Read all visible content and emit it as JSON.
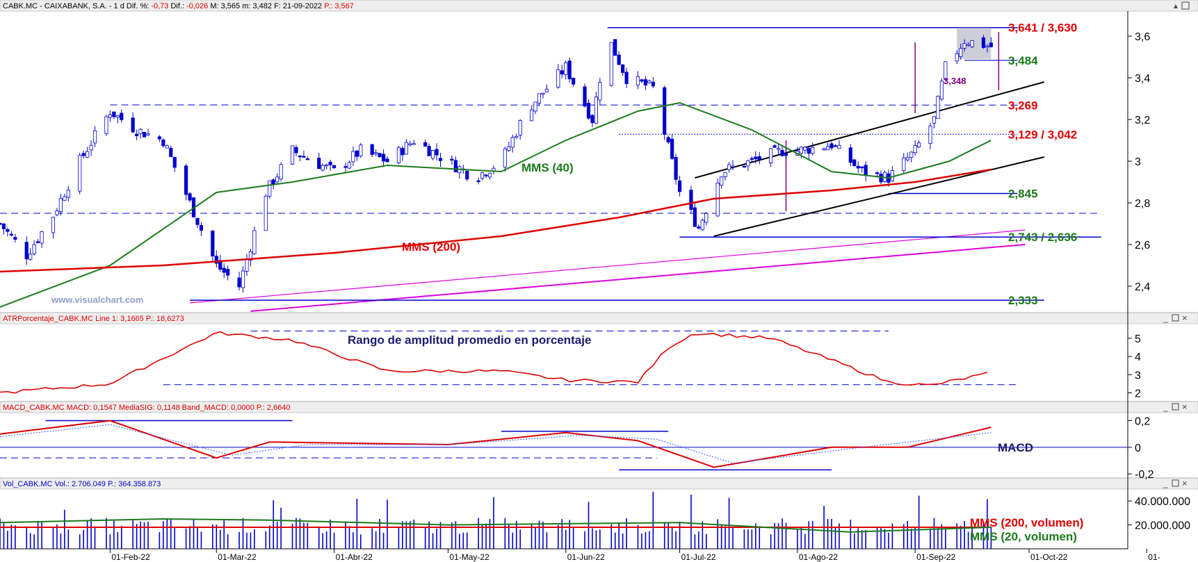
{
  "header": {
    "symbol": "CABK.MC - CAIXABANK, S.A. -",
    "period": "1 d",
    "dif_pct_label": "Dif. %:",
    "dif_pct": "-0,73",
    "dif_label": "Dif.:",
    "dif": "-0,026",
    "max": "M: 3,565",
    "min": "m: 3,482",
    "date": "F: 21-09-2022",
    "last": "P.: 3,567"
  },
  "watermark": "www.visualchart.com",
  "colors": {
    "price": "#0000cc",
    "mms40": "#1a7a1a",
    "mms200": "#e00000",
    "magenta": "#e000e0",
    "purple": "#800080",
    "green_label": "#1a7a1a",
    "red_label": "#e00000"
  },
  "panes": {
    "atr": {
      "title": "ATRPorcentaje_CABK.MC  Line 1: 3,1665  P.: 18,6273",
      "annotation": "Rango de amplitud promedio en porcentaje"
    },
    "macd": {
      "title": "MACD_CABK.MC  MACD: 0,1547  MediaSIG: 0,1148  Band_MACD: 0,0000  P.: 2,6640",
      "annotation": "MACD"
    },
    "volume": {
      "title": "Vol_CABK.MC  Vol.: 2.706.049  P.: 364.358.873",
      "mms200_label": "MMS (200, volumen)",
      "mms20_label": "MMS (20, volumen)"
    }
  },
  "annotations": {
    "mms40": "MMS (40)",
    "mms200": "MMS (200)",
    "target": "3,348"
  },
  "levels": [
    {
      "label": "3,641 / 3,630",
      "value": 3.641,
      "color": "#e00000"
    },
    {
      "label": "3,484",
      "value": 3.484,
      "color": "#1a7a1a"
    },
    {
      "label": "3,269",
      "value": 3.269,
      "color": "#e00000"
    },
    {
      "label": "3,129 / 3,042",
      "value": 3.129,
      "color": "#e00000"
    },
    {
      "label": "2,845",
      "value": 2.845,
      "color": "#1a7a1a"
    },
    {
      "label": "2,743 / 2,636",
      "value": 2.636,
      "color": "#1a7a1a"
    },
    {
      "label": "2,333",
      "value": 2.333,
      "color": "#1a7a1a"
    }
  ],
  "chart_data": [
    {
      "type": "candlestick",
      "ylim": [
        2.28,
        3.72
      ],
      "yticks": [
        "3,6",
        "3,4",
        "3,2",
        "3",
        "2,8",
        "2,6",
        "2,4"
      ],
      "xticks": [
        "01-Feb-22",
        "01-Mar-22",
        "01-Abr-22",
        "01-May-22",
        "01-Jun-22",
        "01-Jul-22",
        "01-Ago-22",
        "01-Sep-22",
        "01-Oct-22",
        "01-"
      ],
      "close_path": [
        [
          "2022-01-03",
          2.7
        ],
        [
          "2022-01-10",
          2.55
        ],
        [
          "2022-01-17",
          2.74
        ],
        [
          "2022-01-24",
          3.0
        ],
        [
          "2022-02-01",
          3.24
        ],
        [
          "2022-02-08",
          3.15
        ],
        [
          "2022-02-15",
          3.1
        ],
        [
          "2022-02-22",
          2.8
        ],
        [
          "2022-03-01",
          2.5
        ],
        [
          "2022-03-07",
          2.4
        ],
        [
          "2022-03-14",
          2.85
        ],
        [
          "2022-03-21",
          3.05
        ],
        [
          "2022-04-01",
          2.95
        ],
        [
          "2022-04-08",
          3.05
        ],
        [
          "2022-04-15",
          3.0
        ],
        [
          "2022-04-22",
          3.1
        ],
        [
          "2022-05-01",
          3.0
        ],
        [
          "2022-05-08",
          2.92
        ],
        [
          "2022-05-15",
          3.0
        ],
        [
          "2022-05-22",
          3.25
        ],
        [
          "2022-06-01",
          3.45
        ],
        [
          "2022-06-08",
          3.2
        ],
        [
          "2022-06-12",
          3.6
        ],
        [
          "2022-06-17",
          3.4
        ],
        [
          "2022-06-24",
          3.35
        ],
        [
          "2022-07-01",
          2.85
        ],
        [
          "2022-07-06",
          2.68
        ],
        [
          "2022-07-12",
          2.95
        ],
        [
          "2022-07-20",
          3.0
        ],
        [
          "2022-07-28",
          3.05
        ],
        [
          "2022-08-01",
          3.05
        ],
        [
          "2022-08-10",
          3.08
        ],
        [
          "2022-08-18",
          2.95
        ],
        [
          "2022-08-25",
          2.92
        ],
        [
          "2022-09-01",
          3.05
        ],
        [
          "2022-09-06",
          3.2
        ],
        [
          "2022-09-09",
          3.45
        ],
        [
          "2022-09-14",
          3.58
        ],
        [
          "2022-09-21",
          3.55
        ]
      ],
      "series": [
        {
          "name": "MMS (40)",
          "points": [
            [
              "2022-01-03",
              2.3
            ],
            [
              "2022-02-01",
              2.5
            ],
            [
              "2022-03-01",
              2.85
            ],
            [
              "2022-03-21",
              2.9
            ],
            [
              "2022-04-15",
              2.98
            ],
            [
              "2022-05-15",
              2.95
            ],
            [
              "2022-06-01",
              3.1
            ],
            [
              "2022-06-20",
              3.24
            ],
            [
              "2022-07-01",
              3.28
            ],
            [
              "2022-07-20",
              3.15
            ],
            [
              "2022-08-10",
              2.95
            ],
            [
              "2022-08-25",
              2.92
            ],
            [
              "2022-09-10",
              3.0
            ],
            [
              "2022-09-21",
              3.1
            ]
          ]
        },
        {
          "name": "MMS (200)",
          "points": [
            [
              "2022-01-03",
              2.47
            ],
            [
              "2022-02-15",
              2.5
            ],
            [
              "2022-04-01",
              2.56
            ],
            [
              "2022-05-15",
              2.64
            ],
            [
              "2022-06-15",
              2.73
            ],
            [
              "2022-07-10",
              2.82
            ],
            [
              "2022-08-10",
              2.86
            ],
            [
              "2022-09-01",
              2.9
            ],
            [
              "2022-09-21",
              2.96
            ]
          ]
        }
      ]
    },
    {
      "type": "line",
      "pane": "ATR %",
      "ylim": [
        1.6,
        5.8
      ],
      "yticks": [
        "5",
        "4",
        "3",
        "2"
      ],
      "points": [
        [
          "2022-01-03",
          2.0
        ],
        [
          "2022-02-01",
          2.5
        ],
        [
          "2022-03-01",
          5.3
        ],
        [
          "2022-03-21",
          4.9
        ],
        [
          "2022-04-15",
          3.2
        ],
        [
          "2022-05-15",
          3.2
        ],
        [
          "2022-06-01",
          2.7
        ],
        [
          "2022-06-20",
          2.6
        ],
        [
          "2022-06-28",
          4.5
        ],
        [
          "2022-07-05",
          5.3
        ],
        [
          "2022-07-25",
          5.0
        ],
        [
          "2022-08-10",
          3.8
        ],
        [
          "2022-08-25",
          2.6
        ],
        [
          "2022-09-05",
          2.4
        ],
        [
          "2022-09-21",
          3.1
        ]
      ]
    },
    {
      "type": "line",
      "pane": "MACD",
      "ylim": [
        -0.22,
        0.26
      ],
      "yticks": [
        "0,2",
        "0",
        "-0,2"
      ],
      "series": [
        {
          "name": "MACD",
          "points": [
            [
              "2022-01-03",
              0.1
            ],
            [
              "2022-02-01",
              0.2
            ],
            [
              "2022-03-01",
              -0.08
            ],
            [
              "2022-03-15",
              0.04
            ],
            [
              "2022-05-01",
              0.02
            ],
            [
              "2022-06-01",
              0.11
            ],
            [
              "2022-06-20",
              0.05
            ],
            [
              "2022-07-10",
              -0.15
            ],
            [
              "2022-08-10",
              0.0
            ],
            [
              "2022-08-30",
              0.0
            ],
            [
              "2022-09-21",
              0.15
            ]
          ]
        },
        {
          "name": "MediaSIG",
          "points": [
            [
              "2022-01-03",
              0.08
            ],
            [
              "2022-02-01",
              0.17
            ],
            [
              "2022-03-05",
              -0.06
            ],
            [
              "2022-03-25",
              0.02
            ],
            [
              "2022-05-01",
              0.02
            ],
            [
              "2022-06-05",
              0.09
            ],
            [
              "2022-06-25",
              0.06
            ],
            [
              "2022-07-15",
              -0.12
            ],
            [
              "2022-08-15",
              -0.01
            ],
            [
              "2022-09-21",
              0.11
            ]
          ]
        }
      ]
    },
    {
      "type": "bar",
      "pane": "Volume",
      "ylim": [
        0,
        50000000
      ],
      "yticks": [
        "40.000.000",
        "20.000.000"
      ],
      "mms200": 18000000,
      "mms20_points": [
        [
          "2022-01-03",
          22000000
        ],
        [
          "2022-02-15",
          25000000
        ],
        [
          "2022-03-15",
          24000000
        ],
        [
          "2022-05-01",
          20000000
        ],
        [
          "2022-07-01",
          22000000
        ],
        [
          "2022-08-15",
          14000000
        ],
        [
          "2022-09-21",
          18000000
        ]
      ]
    }
  ]
}
